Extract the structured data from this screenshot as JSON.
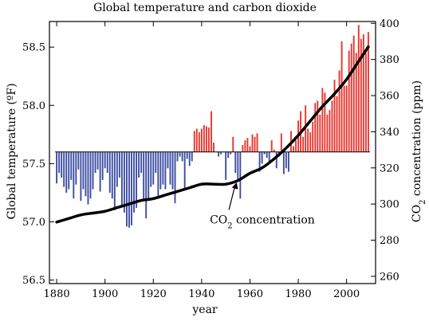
{
  "chart_data": {
    "type": "bar",
    "title": "Global temperature and carbon dioxide",
    "xlabel": "year",
    "ylabel_left": "Global temperature (ºF)",
    "ylabel_right_prefix": "CO",
    "ylabel_right_sub": "2",
    "ylabel_right_suffix": " concentration (ppm)",
    "xlim": [
      1877,
      2012
    ],
    "ylim_left": [
      56.47,
      58.72
    ],
    "ylim_right": [
      256,
      401
    ],
    "baseline": 57.6,
    "x_ticks": [
      1880,
      1900,
      1920,
      1940,
      1960,
      1980,
      2000
    ],
    "x_tick_labels": [
      "1880",
      "1900",
      "1920",
      "1940",
      "1960",
      "1980",
      "2000"
    ],
    "y_left_ticks": [
      56.5,
      57.0,
      57.5,
      58.0,
      58.5
    ],
    "y_left_tick_labels": [
      "56.5",
      "57.0",
      "57.5",
      "58.0",
      "58.5"
    ],
    "y_right_ticks": [
      260,
      280,
      300,
      320,
      340,
      360,
      380,
      400
    ],
    "y_right_tick_labels": [
      "260",
      "280",
      "300",
      "320",
      "340",
      "360",
      "380",
      "400"
    ],
    "colors": {
      "above": "#e8332c",
      "below": "#3b4ca3",
      "co2_line": "#000000"
    },
    "temperature": {
      "years": [
        1880,
        1881,
        1882,
        1883,
        1884,
        1885,
        1886,
        1887,
        1888,
        1889,
        1890,
        1891,
        1892,
        1893,
        1894,
        1895,
        1896,
        1897,
        1898,
        1899,
        1900,
        1901,
        1902,
        1903,
        1904,
        1905,
        1906,
        1907,
        1908,
        1909,
        1910,
        1911,
        1912,
        1913,
        1914,
        1915,
        1916,
        1917,
        1918,
        1919,
        1920,
        1921,
        1922,
        1923,
        1924,
        1925,
        1926,
        1927,
        1928,
        1929,
        1930,
        1931,
        1932,
        1933,
        1934,
        1935,
        1936,
        1937,
        1938,
        1939,
        1940,
        1941,
        1942,
        1943,
        1944,
        1945,
        1946,
        1947,
        1948,
        1949,
        1950,
        1951,
        1952,
        1953,
        1954,
        1955,
        1956,
        1957,
        1958,
        1959,
        1960,
        1961,
        1962,
        1963,
        1964,
        1965,
        1966,
        1967,
        1968,
        1969,
        1970,
        1971,
        1972,
        1973,
        1974,
        1975,
        1976,
        1977,
        1978,
        1979,
        1980,
        1981,
        1982,
        1983,
        1984,
        1985,
        1986,
        1987,
        1988,
        1989,
        1990,
        1991,
        1992,
        1993,
        1994,
        1995,
        1996,
        1997,
        1998,
        1999,
        2000,
        2001,
        2002,
        2003,
        2004,
        2005,
        2006,
        2007,
        2008,
        2009
      ],
      "values": [
        57.33,
        57.42,
        57.38,
        57.3,
        57.25,
        57.28,
        57.36,
        57.2,
        57.32,
        57.45,
        57.18,
        57.28,
        57.22,
        57.15,
        57.2,
        57.28,
        57.42,
        57.45,
        57.26,
        57.36,
        57.46,
        57.42,
        57.25,
        57.2,
        57.1,
        57.3,
        57.38,
        57.14,
        57.08,
        56.96,
        56.95,
        56.97,
        57.08,
        57.12,
        57.38,
        57.42,
        57.18,
        57.03,
        57.18,
        57.3,
        57.32,
        57.42,
        57.22,
        57.28,
        57.32,
        57.28,
        57.46,
        57.32,
        57.28,
        57.16,
        57.52,
        57.56,
        57.52,
        57.28,
        57.54,
        57.48,
        57.52,
        57.78,
        57.8,
        57.77,
        57.8,
        57.83,
        57.82,
        57.81,
        57.95,
        57.68,
        57.6,
        57.56,
        57.58,
        57.6,
        57.36,
        57.55,
        57.58,
        57.73,
        57.42,
        57.35,
        57.2,
        57.66,
        57.7,
        57.72,
        57.65,
        57.75,
        57.73,
        57.76,
        57.43,
        57.5,
        57.58,
        57.55,
        57.52,
        57.7,
        57.62,
        57.46,
        57.56,
        57.76,
        57.41,
        57.46,
        57.43,
        57.78,
        57.65,
        57.7,
        57.87,
        57.95,
        57.73,
        58.0,
        57.8,
        57.77,
        57.86,
        58.02,
        58.04,
        57.92,
        58.15,
        58.11,
        57.92,
        57.96,
        58.04,
        58.22,
        58.08,
        58.3,
        58.55,
        58.17,
        58.17,
        58.47,
        58.53,
        58.6,
        58.45,
        58.69,
        58.57,
        58.61,
        58.45,
        58.63
      ],
      "_note": ""
    },
    "co2": {
      "years": [
        1880,
        1885,
        1890,
        1895,
        1900,
        1905,
        1910,
        1915,
        1920,
        1925,
        1930,
        1935,
        1940,
        1945,
        1950,
        1955,
        1960,
        1965,
        1970,
        1975,
        1980,
        1985,
        1990,
        1995,
        2000,
        2005,
        2009
      ],
      "ppm": [
        290,
        292,
        294,
        295,
        296,
        298,
        300,
        302,
        303,
        305,
        307,
        309,
        311,
        311,
        311,
        313,
        317,
        320,
        325,
        331,
        338,
        346,
        354,
        361,
        369,
        379,
        387
      ]
    },
    "annotation": {
      "prefix": "CO",
      "sub": "2",
      "suffix": " concentration",
      "x": 1948,
      "y_ppm": 303
    }
  }
}
